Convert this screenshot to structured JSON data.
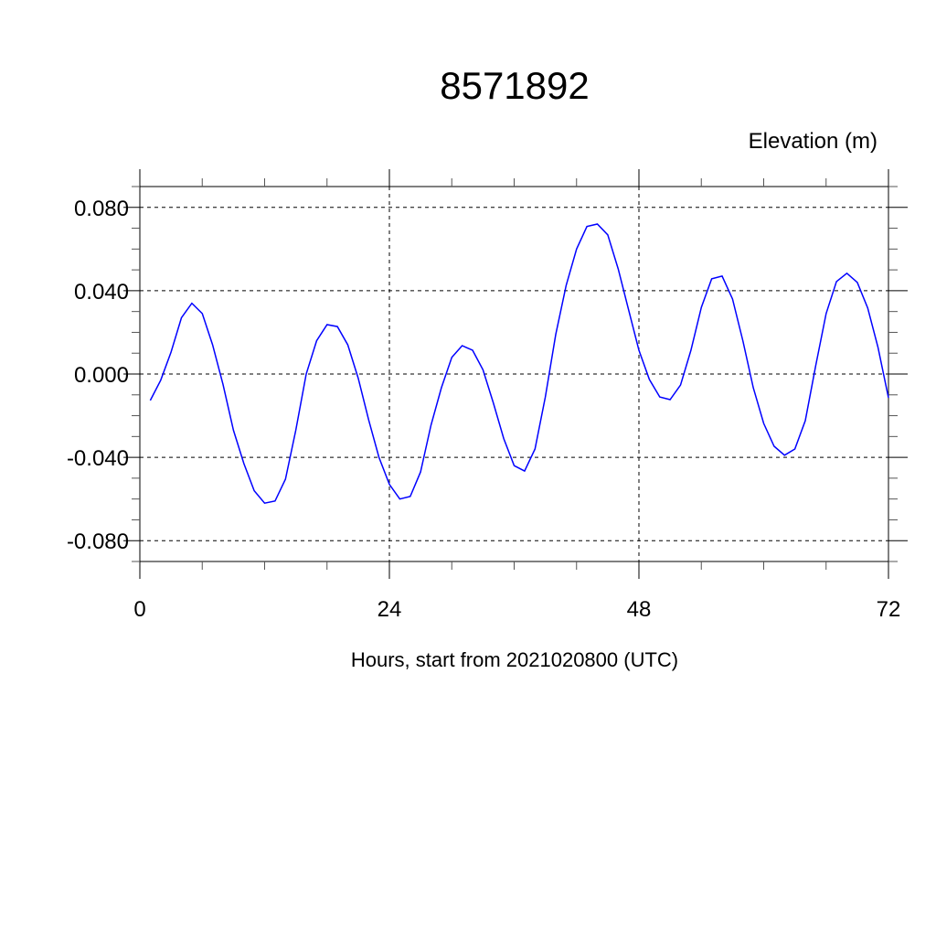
{
  "chart_data": {
    "type": "line",
    "title": "8571892",
    "subtitle": "Elevation (m)",
    "xlabel": "Hours, start from 2021020800 (UTC)",
    "ylabel": "",
    "xlim": [
      0,
      72
    ],
    "ylim": [
      -0.09,
      0.09
    ],
    "xticks": [
      0,
      24,
      48,
      72
    ],
    "xtick_labels": [
      "0",
      "24",
      "48",
      "72"
    ],
    "yticks": [
      0.08,
      0.04,
      0.0,
      -0.04,
      -0.08
    ],
    "ytick_labels": [
      "0.080",
      "0.040",
      "0.000",
      "-0.040",
      "-0.080"
    ],
    "grid": true,
    "series": [
      {
        "color": "#0000ff",
        "x": [
          1,
          2,
          3,
          4,
          5,
          6,
          7,
          8,
          9,
          10,
          11,
          12,
          13,
          14,
          15,
          16,
          17,
          18,
          19,
          20,
          21,
          22,
          23,
          24,
          25,
          26,
          27,
          28,
          29,
          30,
          31,
          32,
          33,
          34,
          35,
          36,
          37,
          38,
          39,
          40,
          41,
          42,
          43,
          44,
          45,
          46,
          47,
          48,
          49,
          50,
          51,
          52,
          53,
          54,
          55,
          56,
          57,
          58,
          59,
          60,
          61,
          62,
          63,
          64,
          65,
          66,
          67,
          68,
          69,
          70,
          71,
          72
        ],
        "y": [
          -0.0127,
          -0.003,
          0.0105,
          0.027,
          0.034,
          0.029,
          0.014,
          -0.005,
          -0.027,
          -0.043,
          -0.056,
          -0.062,
          -0.061,
          -0.0505,
          -0.027,
          0.0,
          0.016,
          0.0237,
          0.0228,
          0.014,
          -0.002,
          -0.022,
          -0.04,
          -0.053,
          -0.06,
          -0.0588,
          -0.047,
          -0.0246,
          -0.0066,
          0.008,
          0.0136,
          0.0114,
          0.002,
          -0.014,
          -0.031,
          -0.044,
          -0.0466,
          -0.036,
          -0.011,
          0.019,
          0.0426,
          0.06,
          0.0708,
          0.072,
          0.0668,
          0.0505,
          0.031,
          0.0114,
          -0.0026,
          -0.011,
          -0.0123,
          -0.0053,
          0.0114,
          0.032,
          0.0457,
          0.047,
          0.036,
          0.0158,
          -0.0066,
          -0.0237,
          -0.0347,
          -0.039,
          -0.036,
          -0.0224,
          0.004,
          0.029,
          0.0444,
          0.0484,
          0.044,
          0.0317,
          0.0127,
          -0.0114
        ]
      }
    ]
  }
}
